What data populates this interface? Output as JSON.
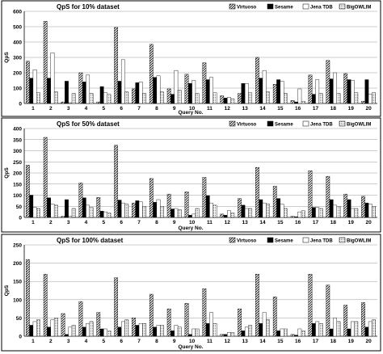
{
  "colors": {
    "sesame": "#000000",
    "jena": "#ffffff",
    "owlim": "#ffffff",
    "stroke": "#000000",
    "grid": "#9a9a9a"
  },
  "chart_data": [
    {
      "type": "bar",
      "title": "QpS for 10% dataset",
      "xlabel": "Query No.",
      "ylabel": "QpS",
      "ylim": [
        0,
        600
      ],
      "yticks": [
        0,
        100,
        200,
        300,
        400,
        500,
        600
      ],
      "grid": true,
      "legend": "top-right",
      "categories": [
        "1",
        "2",
        "3",
        "4",
        "5",
        "6",
        "7",
        "8",
        "9",
        "10",
        "11",
        "12",
        "13",
        "14",
        "15",
        "16",
        "17",
        "18",
        "19",
        "20"
      ],
      "series": [
        {
          "name": "Virtuoso",
          "values": [
            275,
            535,
            10,
            200,
            10,
            495,
            95,
            385,
            95,
            190,
            265,
            50,
            65,
            300,
            125,
            20,
            185,
            280,
            195,
            15
          ]
        },
        {
          "name": "Sesame",
          "values": [
            165,
            165,
            145,
            140,
            110,
            145,
            135,
            170,
            60,
            130,
            155,
            35,
            130,
            165,
            155,
            10,
            60,
            160,
            155,
            155
          ]
        },
        {
          "name": "Jena TDB",
          "values": [
            220,
            330,
            5,
            185,
            70,
            285,
            140,
            180,
            215,
            150,
            170,
            40,
            130,
            215,
            145,
            95,
            155,
            200,
            150,
            60
          ]
        },
        {
          "name": "BigOWLIM",
          "values": [
            70,
            75,
            65,
            65,
            60,
            75,
            65,
            75,
            85,
            65,
            70,
            30,
            70,
            75,
            65,
            15,
            65,
            65,
            70,
            70
          ]
        }
      ]
    },
    {
      "type": "bar",
      "title": "QpS for 50% dataset",
      "xlabel": "Query No.",
      "ylabel": "QpS",
      "ylim": [
        0,
        400
      ],
      "yticks": [
        0,
        50,
        100,
        150,
        200,
        250,
        300,
        350,
        400
      ],
      "grid": true,
      "legend": "top-right",
      "categories": [
        "1",
        "2",
        "3",
        "4",
        "5",
        "6",
        "7",
        "8",
        "9",
        "10",
        "11",
        "12",
        "13",
        "14",
        "15",
        "16",
        "17",
        "18",
        "19",
        "20"
      ],
      "series": [
        {
          "name": "Virtuoso",
          "values": [
            235,
            360,
            5,
            155,
            90,
            325,
            65,
            175,
            105,
            115,
            180,
            15,
            85,
            225,
            140,
            5,
            210,
            185,
            105,
            95
          ]
        },
        {
          "name": "Sesame",
          "values": [
            100,
            88,
            80,
            88,
            28,
            78,
            75,
            68,
            38,
            10,
            98,
            10,
            55,
            80,
            85,
            3,
            45,
            80,
            80,
            65
          ]
        },
        {
          "name": "Jena TDB",
          "values": [
            45,
            60,
            5,
            55,
            25,
            65,
            70,
            80,
            40,
            15,
            65,
            30,
            40,
            65,
            60,
            25,
            45,
            55,
            40,
            60
          ]
        },
        {
          "name": "BigOWLIM",
          "values": [
            40,
            55,
            40,
            45,
            20,
            60,
            50,
            50,
            35,
            40,
            55,
            20,
            40,
            60,
            40,
            30,
            40,
            50,
            40,
            50
          ]
        }
      ]
    },
    {
      "type": "bar",
      "title": "QpS for 100% dataset",
      "xlabel": "Query No.",
      "ylabel": "QpS",
      "ylim": [
        0,
        250
      ],
      "yticks": [
        0,
        50,
        100,
        150,
        200,
        250
      ],
      "grid": true,
      "legend": "top-right",
      "categories": [
        "1",
        "2",
        "3",
        "4",
        "5",
        "6",
        "7",
        "8",
        "9",
        "10",
        "11",
        "12",
        "13",
        "14",
        "15",
        "16",
        "17",
        "18",
        "19",
        "20"
      ],
      "series": [
        {
          "name": "Virtuoso",
          "values": [
            210,
            170,
            62,
            95,
            65,
            160,
            50,
            115,
            75,
            90,
            130,
            5,
            75,
            170,
            108,
            5,
            170,
            140,
            85,
            92
          ]
        },
        {
          "name": "Sesame",
          "values": [
            30,
            25,
            5,
            25,
            20,
            25,
            30,
            25,
            15,
            5,
            35,
            5,
            15,
            35,
            15,
            3,
            35,
            20,
            20,
            25
          ]
        },
        {
          "name": "Jena TDB",
          "values": [
            40,
            45,
            25,
            35,
            20,
            40,
            35,
            30,
            30,
            20,
            65,
            10,
            25,
            65,
            20,
            20,
            40,
            50,
            40,
            40
          ]
        },
        {
          "name": "BigOWLIM",
          "values": [
            45,
            50,
            30,
            40,
            15,
            45,
            35,
            30,
            25,
            20,
            35,
            10,
            30,
            45,
            20,
            15,
            35,
            40,
            40,
            45
          ]
        }
      ]
    }
  ]
}
